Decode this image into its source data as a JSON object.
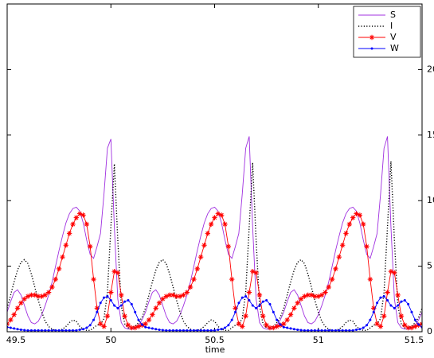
{
  "chart_data": {
    "type": "line",
    "xlabel": "time",
    "x": [
      49.5,
      49.5167,
      49.5333,
      49.55,
      49.5667,
      49.5833,
      49.6,
      49.6167,
      49.6333,
      49.65,
      49.6667,
      49.6833,
      49.7,
      49.7167,
      49.7333,
      49.75,
      49.7667,
      49.7833,
      49.8,
      49.8167,
      49.8333,
      49.85,
      49.8667,
      49.8833,
      49.9,
      49.9167,
      49.9333,
      49.95,
      49.9667,
      49.9833,
      50,
      50.0167,
      50.0333,
      50.05,
      50.0667,
      50.0833,
      50.1,
      50.1167,
      50.1333,
      50.15,
      50.1667,
      50.1833,
      50.2,
      50.2167,
      50.2333,
      50.25,
      50.2667,
      50.2833,
      50.3,
      50.3167,
      50.3333,
      50.35,
      50.3667,
      50.3833,
      50.4,
      50.4167,
      50.4333,
      50.45,
      50.4667,
      50.4833,
      50.5,
      50.5167,
      50.5333,
      50.55,
      50.5667,
      50.5833,
      50.6,
      50.6167,
      50.6333,
      50.65,
      50.6667,
      50.6833,
      50.7,
      50.7167,
      50.7333,
      50.75,
      50.7667,
      50.7833,
      50.8,
      50.8167,
      50.8333,
      50.85,
      50.8667,
      50.8833,
      50.9,
      50.9167,
      50.9333,
      50.95,
      50.9667,
      50.9833,
      51,
      51.0167,
      51.0333,
      51.05,
      51.0667,
      51.0833,
      51.1,
      51.1167,
      51.1333,
      51.15,
      51.1667,
      51.1833,
      51.2,
      51.2167,
      51.2333,
      51.25,
      51.2667,
      51.2833,
      51.3,
      51.3167,
      51.3333,
      51.35,
      51.3667,
      51.3833,
      51.4,
      51.4167,
      51.4333,
      51.45,
      51.4667,
      51.4833,
      51.5
    ],
    "series": [
      {
        "name": "S",
        "color": "#a030e0",
        "line_style": "solid",
        "marker": "none",
        "values": [
          1.5,
          2.3,
          3.0,
          3.2,
          2.8,
          2.0,
          1.2,
          0.7,
          0.6,
          0.8,
          1.3,
          2.0,
          2.8,
          3.8,
          5.0,
          6.2,
          7.3,
          8.3,
          9.0,
          9.4,
          9.5,
          9.2,
          8.3,
          7.0,
          5.9,
          5.6,
          6.5,
          7.5,
          10.5,
          14.0,
          14.7,
          8.0,
          2.5,
          0.7,
          0.3,
          0.2,
          0.2,
          0.3,
          0.5,
          0.9,
          1.5,
          2.3,
          3.0,
          3.2,
          2.8,
          2.0,
          1.2,
          0.7,
          0.6,
          0.8,
          1.3,
          2.0,
          2.8,
          3.8,
          5.0,
          6.2,
          7.3,
          8.3,
          9.0,
          9.4,
          9.5,
          9.2,
          8.3,
          7.0,
          5.9,
          5.6,
          6.5,
          7.5,
          10.5,
          14.0,
          14.9,
          8.0,
          2.5,
          0.7,
          0.3,
          0.2,
          0.2,
          0.3,
          0.5,
          0.9,
          1.5,
          2.3,
          3.0,
          3.2,
          2.8,
          2.0,
          1.2,
          0.7,
          0.6,
          0.8,
          1.3,
          2.0,
          2.8,
          3.8,
          5.0,
          6.2,
          7.3,
          8.3,
          9.0,
          9.4,
          9.5,
          9.2,
          8.3,
          7.0,
          5.9,
          5.6,
          6.5,
          7.5,
          10.5,
          14.0,
          14.9,
          8.0,
          2.5,
          0.7,
          0.3,
          0.2,
          0.2,
          0.3,
          0.5,
          0.9,
          1.5
        ]
      },
      {
        "name": "I",
        "color": "#000000",
        "line_style": "dotted",
        "marker": "none",
        "values": [
          1.8,
          2.8,
          3.8,
          4.7,
          5.3,
          5.5,
          5.2,
          4.4,
          3.4,
          2.4,
          1.5,
          0.8,
          0.4,
          0.2,
          0.1,
          0.1,
          0.2,
          0.4,
          0.7,
          0.9,
          0.8,
          0.4,
          0.2,
          0.1,
          0.1,
          0.3,
          0.5,
          0.6,
          1.0,
          3.0,
          8.0,
          12.8,
          7.0,
          2.0,
          0.6,
          0.3,
          0.3,
          0.4,
          0.7,
          1.1,
          1.8,
          2.8,
          3.8,
          4.7,
          5.3,
          5.5,
          5.2,
          4.4,
          3.4,
          2.4,
          1.5,
          0.8,
          0.4,
          0.2,
          0.1,
          0.1,
          0.2,
          0.4,
          0.7,
          0.9,
          0.8,
          0.4,
          0.2,
          0.1,
          0.1,
          0.3,
          0.5,
          0.6,
          1.0,
          3.0,
          8.0,
          12.9,
          7.0,
          2.0,
          0.6,
          0.3,
          0.3,
          0.4,
          0.7,
          1.1,
          1.8,
          2.8,
          3.8,
          4.7,
          5.3,
          5.5,
          5.2,
          4.4,
          3.4,
          2.4,
          1.5,
          0.8,
          0.4,
          0.2,
          0.1,
          0.1,
          0.2,
          0.4,
          0.7,
          0.9,
          0.8,
          0.4,
          0.2,
          0.1,
          0.1,
          0.3,
          0.5,
          0.6,
          1.0,
          3.0,
          8.0,
          13.0,
          7.0,
          2.0,
          0.6,
          0.3,
          0.3,
          0.4,
          0.7,
          1.1,
          1.8
        ]
      },
      {
        "name": "V",
        "color": "#ff0000",
        "line_style": "solid",
        "marker": "asterisk",
        "values": [
          0.6,
          0.9,
          1.3,
          1.8,
          2.2,
          2.5,
          2.7,
          2.8,
          2.8,
          2.7,
          2.7,
          2.8,
          3.0,
          3.4,
          4.0,
          4.8,
          5.7,
          6.6,
          7.5,
          8.2,
          8.7,
          9.0,
          8.9,
          8.2,
          6.5,
          4.0,
          1.8,
          0.6,
          0.4,
          1.2,
          3.0,
          4.6,
          4.5,
          2.8,
          1.2,
          0.5,
          0.3,
          0.3,
          0.4,
          0.5,
          0.6,
          0.9,
          1.3,
          1.8,
          2.2,
          2.5,
          2.7,
          2.8,
          2.8,
          2.7,
          2.7,
          2.8,
          3.0,
          3.4,
          4.0,
          4.8,
          5.7,
          6.6,
          7.5,
          8.2,
          8.7,
          9.0,
          8.9,
          8.2,
          6.5,
          4.0,
          1.8,
          0.6,
          0.4,
          1.2,
          3.0,
          4.6,
          4.5,
          2.8,
          1.2,
          0.5,
          0.3,
          0.3,
          0.4,
          0.5,
          0.6,
          0.9,
          1.3,
          1.8,
          2.2,
          2.5,
          2.7,
          2.8,
          2.8,
          2.7,
          2.7,
          2.8,
          3.0,
          3.4,
          4.0,
          4.8,
          5.7,
          6.6,
          7.5,
          8.2,
          8.7,
          9.0,
          8.9,
          8.2,
          6.5,
          4.0,
          1.8,
          0.6,
          0.4,
          1.2,
          3.0,
          4.6,
          4.5,
          2.8,
          1.2,
          0.5,
          0.3,
          0.3,
          0.4,
          0.5,
          0.6
        ]
      },
      {
        "name": "W",
        "color": "#0000ff",
        "line_style": "solid",
        "marker": "dot",
        "values": [
          0.35,
          0.3,
          0.25,
          0.2,
          0.15,
          0.12,
          0.1,
          0.1,
          0.1,
          0.1,
          0.1,
          0.1,
          0.1,
          0.1,
          0.1,
          0.1,
          0.1,
          0.1,
          0.1,
          0.1,
          0.1,
          0.15,
          0.2,
          0.3,
          0.5,
          0.9,
          1.5,
          2.2,
          2.6,
          2.7,
          2.4,
          2.0,
          1.8,
          2.0,
          2.3,
          2.4,
          2.1,
          1.5,
          0.9,
          0.55,
          0.35,
          0.3,
          0.25,
          0.2,
          0.15,
          0.12,
          0.1,
          0.1,
          0.1,
          0.1,
          0.1,
          0.1,
          0.1,
          0.1,
          0.1,
          0.1,
          0.1,
          0.1,
          0.1,
          0.1,
          0.1,
          0.15,
          0.2,
          0.3,
          0.5,
          0.9,
          1.5,
          2.2,
          2.6,
          2.7,
          2.4,
          2.0,
          1.8,
          2.0,
          2.3,
          2.4,
          2.1,
          1.5,
          0.9,
          0.55,
          0.35,
          0.3,
          0.25,
          0.2,
          0.15,
          0.12,
          0.1,
          0.1,
          0.1,
          0.1,
          0.1,
          0.1,
          0.1,
          0.1,
          0.1,
          0.1,
          0.1,
          0.1,
          0.1,
          0.1,
          0.1,
          0.15,
          0.2,
          0.3,
          0.5,
          0.9,
          1.5,
          2.2,
          2.6,
          2.7,
          2.4,
          2.0,
          1.8,
          2.0,
          2.3,
          2.4,
          2.1,
          1.5,
          0.9,
          0.55,
          0.35
        ]
      }
    ],
    "xlim": [
      49.5,
      51.5
    ],
    "ylim": [
      0,
      25
    ],
    "xticks": [
      49.5,
      50,
      50.5,
      51,
      51.5
    ],
    "yticks": [
      0,
      5,
      10,
      15,
      20
    ],
    "grid": false,
    "legend": "top-right"
  }
}
